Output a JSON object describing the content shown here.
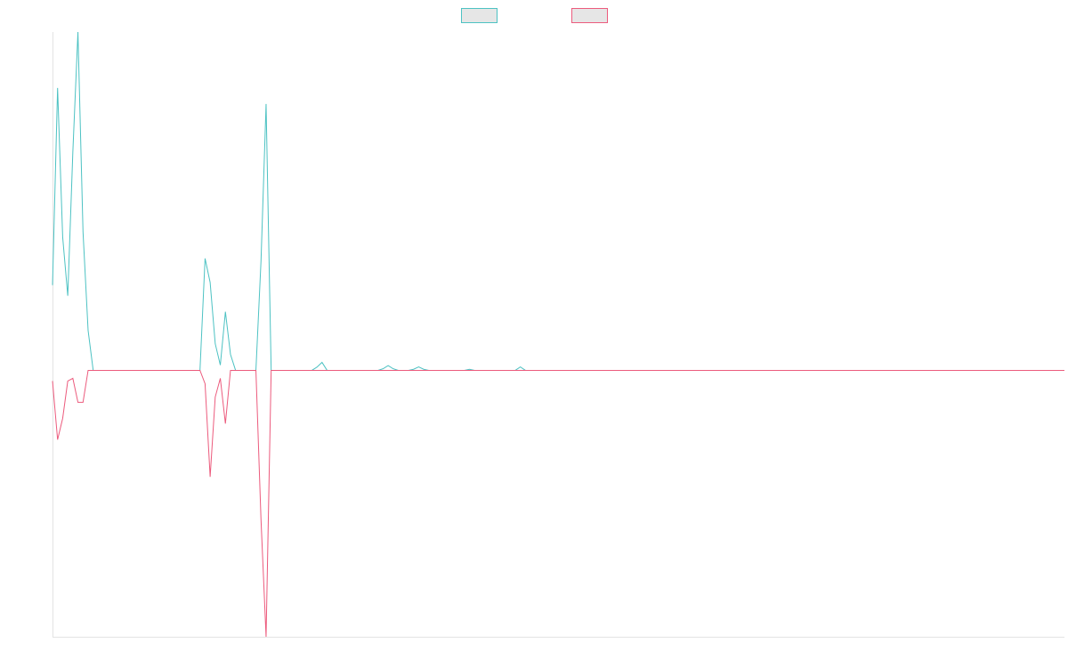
{
  "chart_data": {
    "type": "line",
    "title": "",
    "xlabel": "",
    "ylabel": "",
    "grid": false,
    "legend": "top-center",
    "ylim": [
      -1,
      1.27
    ],
    "x_count": 200,
    "series": [
      {
        "color": "#4dc2c3",
        "legend_fill": "#e6e6e6",
        "values": [
          0.32,
          1.06,
          0.5,
          0.28,
          0.82,
          1.27,
          0.52,
          0.15,
          0,
          0,
          0,
          0,
          0,
          0,
          0,
          0,
          0,
          0,
          0,
          0,
          0,
          0,
          0,
          0,
          0,
          0,
          0,
          0,
          0,
          0,
          0.42,
          0.33,
          0.1,
          0.02,
          0.22,
          0.06,
          0,
          0,
          0,
          0,
          0,
          0.41,
          1.0,
          0,
          0,
          0,
          0,
          0,
          0,
          0,
          0,
          0,
          0.012,
          0.03,
          0,
          0,
          0,
          0,
          0,
          0,
          0,
          0,
          0,
          0,
          0,
          0.006,
          0.018,
          0.006,
          0,
          0,
          0,
          0.004,
          0.013,
          0.004,
          0,
          0,
          0,
          0,
          0,
          0,
          0,
          0,
          0.004,
          0,
          0,
          0,
          0,
          0,
          0,
          0,
          0,
          0,
          0.013,
          0,
          0,
          0,
          0,
          0,
          0,
          0,
          0,
          0,
          0,
          0,
          0,
          0,
          0,
          0,
          0,
          0,
          0,
          0,
          0,
          0,
          0,
          0,
          0,
          0,
          0,
          0,
          0,
          0,
          0,
          0,
          0,
          0,
          0,
          0,
          0,
          0,
          0,
          0,
          0,
          0,
          0,
          0,
          0,
          0,
          0,
          0,
          0,
          0,
          0,
          0,
          0,
          0,
          0,
          0,
          0,
          0,
          0,
          0,
          0,
          0,
          0,
          0,
          0,
          0,
          0,
          0,
          0,
          0,
          0,
          0,
          0,
          0,
          0,
          0,
          0,
          0,
          0,
          0,
          0,
          0,
          0,
          0,
          0,
          0,
          0,
          0,
          0,
          0,
          0,
          0,
          0,
          0,
          0,
          0,
          0,
          0,
          0,
          0,
          0,
          0,
          0,
          0,
          0,
          0,
          0,
          0
        ]
      },
      {
        "color": "#ec5b7d",
        "legend_fill": "#e6e6e6",
        "values": [
          -0.04,
          -0.26,
          -0.18,
          -0.04,
          -0.03,
          -0.12,
          -0.12,
          0,
          0,
          0,
          0,
          0,
          0,
          0,
          0,
          0,
          0,
          0,
          0,
          0,
          0,
          0,
          0,
          0,
          0,
          0,
          0,
          0,
          0,
          0,
          -0.05,
          -0.4,
          -0.1,
          -0.03,
          -0.2,
          0,
          0,
          0,
          0,
          0,
          0,
          -0.56,
          -1.0,
          0,
          0,
          0,
          0,
          0,
          0,
          0,
          0,
          0,
          0,
          0,
          0,
          0,
          0,
          0,
          0,
          0,
          0,
          0,
          0,
          0,
          0,
          0,
          0,
          0,
          0,
          0,
          0,
          0,
          0,
          0,
          0,
          0,
          0,
          0,
          0,
          0,
          0,
          0,
          0,
          0,
          0,
          0,
          0,
          0,
          0,
          0,
          0,
          0,
          0,
          0,
          0,
          0,
          0,
          0,
          0,
          0,
          0,
          0,
          0,
          0,
          0,
          0,
          0,
          0,
          0,
          0,
          0,
          0,
          0,
          0,
          0,
          0,
          0,
          0,
          0,
          0,
          0,
          0,
          0,
          0,
          0,
          0,
          0,
          0,
          0,
          0,
          0,
          0,
          0,
          0,
          0,
          0,
          0,
          0,
          0,
          0,
          0,
          0,
          0,
          0,
          0,
          0,
          0,
          0,
          0,
          0,
          0,
          0,
          0,
          0,
          0,
          0,
          0,
          0,
          0,
          0,
          0,
          0,
          0,
          0,
          0,
          0,
          0,
          0,
          0,
          0,
          0,
          0,
          0,
          0,
          0,
          0,
          0,
          0,
          0,
          0,
          0,
          0,
          0,
          0,
          0,
          0,
          0,
          0,
          0,
          0,
          0,
          0,
          0,
          0,
          0,
          0,
          0,
          0,
          0,
          0
        ]
      }
    ]
  }
}
